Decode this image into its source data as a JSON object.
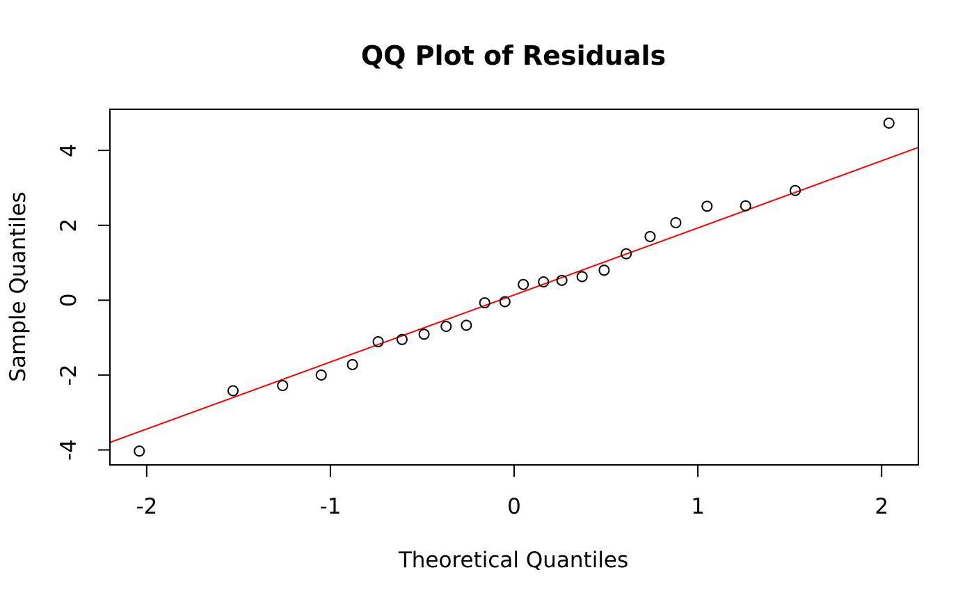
{
  "chart_data": {
    "type": "scatter",
    "title": "QQ Plot of Residuals",
    "xlabel": "Theoretical Quantiles",
    "ylabel": "Sample Quantiles",
    "xlim": [
      -2.2,
      2.2
    ],
    "ylim": [
      -4.4,
      5.1
    ],
    "xticks": [
      -2,
      -1,
      0,
      1,
      2
    ],
    "yticks": [
      -4,
      -2,
      0,
      2,
      4
    ],
    "xtick_labels": [
      "-2",
      "-1",
      "0",
      "1",
      "2"
    ],
    "ytick_labels": [
      "-4",
      "-2",
      "0",
      "2",
      "4"
    ],
    "grid": false,
    "legend": "none",
    "point_color": "#000000",
    "line_color": "#ff0000",
    "series": [
      {
        "x": [
          -2.04,
          -1.53,
          -1.26,
          -1.05,
          -0.88,
          -0.74,
          -0.61,
          -0.49,
          -0.37,
          -0.26,
          -0.16,
          -0.05,
          0.05,
          0.16,
          0.26,
          0.37,
          0.49,
          0.61,
          0.74,
          0.88,
          1.05,
          1.26,
          1.53,
          2.04
        ],
        "y": [
          -4.03,
          -2.42,
          -2.28,
          -2.0,
          -1.72,
          -1.11,
          -1.05,
          -0.91,
          -0.7,
          -0.67,
          -0.07,
          -0.04,
          0.42,
          0.49,
          0.53,
          0.63,
          0.8,
          1.24,
          1.7,
          2.07,
          2.51,
          2.52,
          2.93,
          4.73
        ]
      }
    ],
    "reference_line": {
      "x": [
        -2.2,
        2.2
      ],
      "y": [
        -3.8,
        4.08
      ]
    }
  }
}
